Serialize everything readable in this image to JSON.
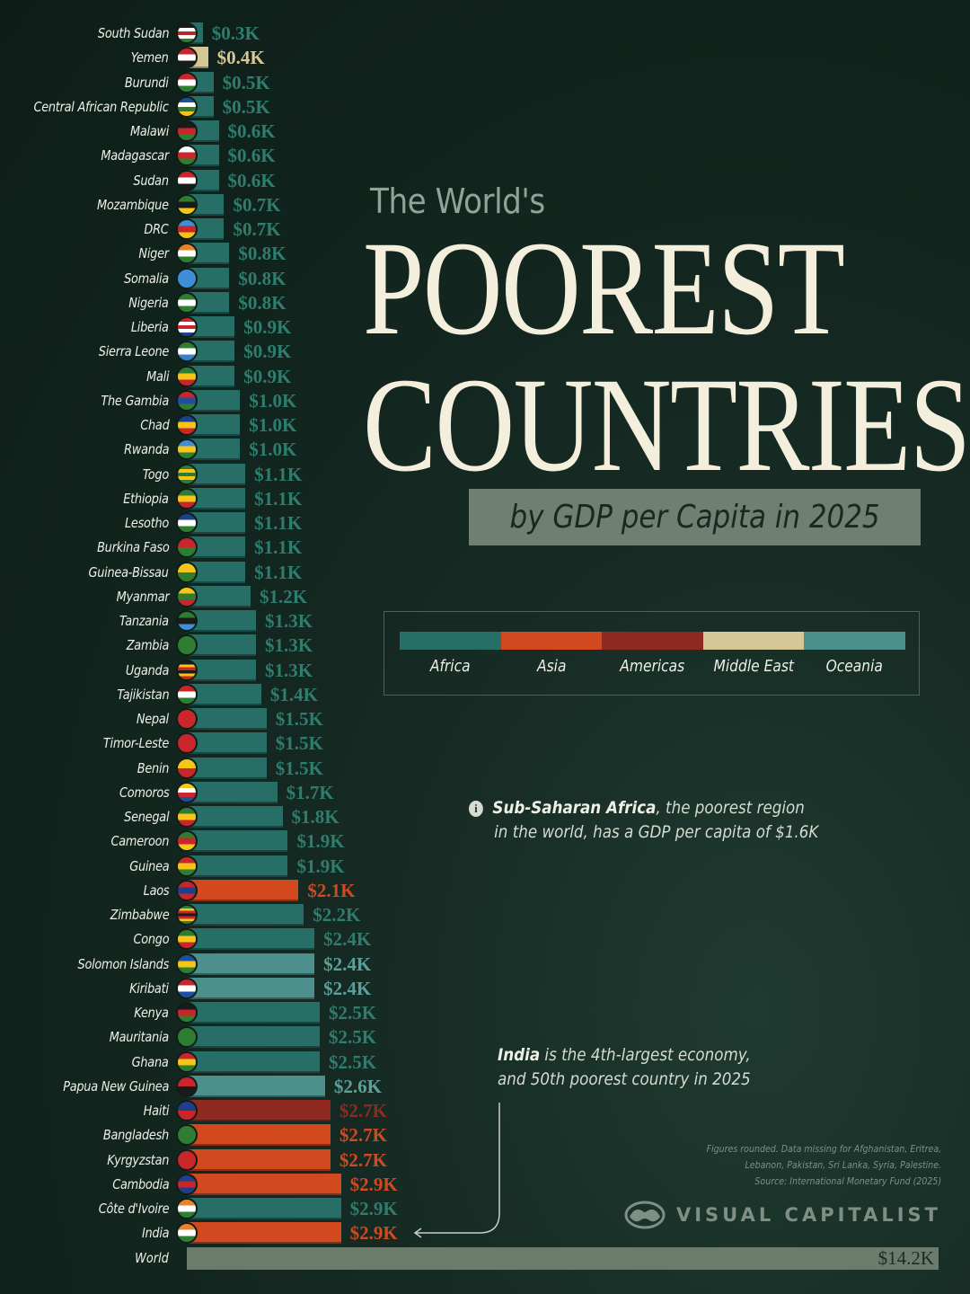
{
  "header": {
    "pretitle": "The World's",
    "title_line1": "POOREST",
    "title_line2": "COUNTRIES",
    "subtitle": "by GDP per Capita in 2025"
  },
  "legend": {
    "items": [
      {
        "label": "Africa",
        "color": "#276e66"
      },
      {
        "label": "Asia",
        "color": "#d2481f"
      },
      {
        "label": "Americas",
        "color": "#8f2a22"
      },
      {
        "label": "Middle East",
        "color": "#d6c896"
      },
      {
        "label": "Oceania",
        "color": "#4d8f8c"
      }
    ]
  },
  "annotations": {
    "ssa_bold": "Sub-Saharan Africa",
    "ssa_rest1": ", the poorest region",
    "ssa_line2": "in the world, has a GDP per capita of $1.6K",
    "info_icon": "i",
    "india_bold": "India",
    "india_rest1": " is the 4th-largest economy,",
    "india_line2": "and 50th poorest country in 2025"
  },
  "footer": {
    "note_line1": "Figures rounded. Data missing for Afghanistan, Eritrea,",
    "note_line2": "Lebanon, Pakistan, Sri Lanka, Syria, Palestine.",
    "source": "Source: International Monetary Fund (2025)",
    "brand": "VISUAL CAPITALIST"
  },
  "colors": {
    "Africa": "#276e66",
    "Asia": "#d2481f",
    "Americas": "#8f2a22",
    "Middle East": "#d6c896",
    "Oceania": "#4d8f8c",
    "World": "#6b7c6c",
    "background": "#10231c",
    "title": "#f4eedd"
  },
  "chart_data": {
    "type": "bar",
    "orientation": "horizontal",
    "title": "The World's POOREST COUNTRIES",
    "subtitle": "by GDP per Capita in 2025",
    "xlabel": "",
    "ylabel": "",
    "unit": "USD thousands (GDP per capita)",
    "grid": false,
    "legend_position": "right-middle",
    "categories": [
      "South Sudan",
      "Yemen",
      "Burundi",
      "Central African Republic",
      "Malawi",
      "Madagascar",
      "Sudan",
      "Mozambique",
      "DRC",
      "Niger",
      "Somalia",
      "Nigeria",
      "Liberia",
      "Sierra Leone",
      "Mali",
      "The Gambia",
      "Chad",
      "Rwanda",
      "Togo",
      "Ethiopia",
      "Lesotho",
      "Burkina Faso",
      "Guinea-Bissau",
      "Myanmar",
      "Tanzania",
      "Zambia",
      "Uganda",
      "Tajikistan",
      "Nepal",
      "Timor-Leste",
      "Benin",
      "Comoros",
      "Senegal",
      "Cameroon",
      "Guinea",
      "Laos",
      "Zimbabwe",
      "Congo",
      "Solomon Islands",
      "Kiribati",
      "Kenya",
      "Mauritania",
      "Ghana",
      "Papua New Guinea",
      "Haiti",
      "Bangladesh",
      "Kyrgyzstan",
      "Cambodia",
      "Côte d'Ivoire",
      "India",
      "World"
    ],
    "values": [
      0.3,
      0.4,
      0.5,
      0.5,
      0.6,
      0.6,
      0.6,
      0.7,
      0.7,
      0.8,
      0.8,
      0.8,
      0.9,
      0.9,
      0.9,
      1.0,
      1.0,
      1.0,
      1.1,
      1.1,
      1.1,
      1.1,
      1.1,
      1.2,
      1.3,
      1.3,
      1.3,
      1.4,
      1.5,
      1.5,
      1.5,
      1.7,
      1.8,
      1.9,
      1.9,
      2.1,
      2.2,
      2.4,
      2.4,
      2.4,
      2.5,
      2.5,
      2.5,
      2.6,
      2.7,
      2.7,
      2.7,
      2.9,
      2.9,
      2.9,
      14.2
    ],
    "regions": [
      "Africa",
      "Middle East",
      "Africa",
      "Africa",
      "Africa",
      "Africa",
      "Africa",
      "Africa",
      "Africa",
      "Africa",
      "Africa",
      "Africa",
      "Africa",
      "Africa",
      "Africa",
      "Africa",
      "Africa",
      "Africa",
      "Africa",
      "Africa",
      "Africa",
      "Africa",
      "Africa",
      "Africa",
      "Africa",
      "Africa",
      "Africa",
      "Africa",
      "Africa",
      "Africa",
      "Africa",
      "Africa",
      "Africa",
      "Africa",
      "Africa",
      "Asia",
      "Africa",
      "Africa",
      "Oceania",
      "Oceania",
      "Africa",
      "Africa",
      "Africa",
      "Oceania",
      "Americas",
      "Asia",
      "Asia",
      "Asia",
      "Africa",
      "Asia",
      "World"
    ],
    "labels": [
      "$0.3K",
      "$0.4K",
      "$0.5K",
      "$0.5K",
      "$0.6K",
      "$0.6K",
      "$0.6K",
      "$0.7K",
      "$0.7K",
      "$0.8K",
      "$0.8K",
      "$0.8K",
      "$0.9K",
      "$0.9K",
      "$0.9K",
      "$1.0K",
      "$1.0K",
      "$1.0K",
      "$1.1K",
      "$1.1K",
      "$1.1K",
      "$1.1K",
      "$1.1K",
      "$1.2K",
      "$1.3K",
      "$1.3K",
      "$1.3K",
      "$1.4K",
      "$1.5K",
      "$1.5K",
      "$1.5K",
      "$1.7K",
      "$1.8K",
      "$1.9K",
      "$1.9K",
      "$2.1K",
      "$2.2K",
      "$2.4K",
      "$2.4K",
      "$2.4K",
      "$2.5K",
      "$2.5K",
      "$2.5K",
      "$2.6K",
      "$2.7K",
      "$2.7K",
      "$2.7K",
      "$2.9K",
      "$2.9K",
      "$2.9K",
      "$14.2K"
    ],
    "legend": [
      "Africa",
      "Asia",
      "Americas",
      "Middle East",
      "Oceania"
    ],
    "annotations": [
      "Sub-Saharan Africa, the poorest region in the world, has a GDP per capita of $1.6K",
      "India is the 4th-largest economy, and 50th poorest country in 2025"
    ]
  },
  "flags": {
    "South Sudan": [
      "#1b1b1b",
      "#ffffff",
      "#b22a2a",
      "#ffffff",
      "#2e7d32"
    ],
    "Yemen": [
      "#c8262b",
      "#ffffff",
      "#1b1b1b"
    ],
    "Burundi": [
      "#c8262b",
      "#ffffff",
      "#2e7d32"
    ],
    "Central African Republic": [
      "#1e4fa0",
      "#ffffff",
      "#2e7d32",
      "#f5c518"
    ],
    "Malawi": [
      "#1b1b1b",
      "#c8262b",
      "#2e7d32"
    ],
    "Madagascar": [
      "#ffffff",
      "#c8262b",
      "#2e7d32"
    ],
    "Sudan": [
      "#c8262b",
      "#ffffff",
      "#1b1b1b"
    ],
    "Mozambique": [
      "#2e7d32",
      "#1b1b1b",
      "#f5c518"
    ],
    "DRC": [
      "#3a8fd8",
      "#c8262b",
      "#f5c518"
    ],
    "Niger": [
      "#e8832a",
      "#ffffff",
      "#2e7d32"
    ],
    "Somalia": [
      "#3f8fd8",
      "#3f8fd8",
      "#3f8fd8"
    ],
    "Nigeria": [
      "#2e7d32",
      "#ffffff",
      "#2e7d32"
    ],
    "Liberia": [
      "#c8262b",
      "#ffffff",
      "#c8262b",
      "#ffffff",
      "#1e3f8a"
    ],
    "Sierra Leone": [
      "#2e7d32",
      "#ffffff",
      "#3f7fc8"
    ],
    "Mali": [
      "#2e7d32",
      "#f5c518",
      "#c8262b"
    ],
    "The Gambia": [
      "#c8262b",
      "#1e4fa0",
      "#2e7d32"
    ],
    "Chad": [
      "#1e3f8a",
      "#f5c518",
      "#c8262b"
    ],
    "Rwanda": [
      "#3f8fd8",
      "#f5c518",
      "#2e7d32"
    ],
    "Togo": [
      "#2e7d32",
      "#f5c518",
      "#2e7d32",
      "#f5c518",
      "#2e7d32"
    ],
    "Ethiopia": [
      "#2e7d32",
      "#f5c518",
      "#c8262b"
    ],
    "Lesotho": [
      "#1e3f8a",
      "#ffffff",
      "#2e7d32"
    ],
    "Burkina Faso": [
      "#c8262b",
      "#2e7d32"
    ],
    "Guinea-Bissau": [
      "#f5c518",
      "#2e7d32"
    ],
    "Myanmar": [
      "#f5c518",
      "#2e7d32",
      "#c8262b"
    ],
    "Tanzania": [
      "#2e7d32",
      "#1b1b1b",
      "#3f8fd8"
    ],
    "Zambia": [
      "#2e7d32",
      "#2e7d32",
      "#2e7d32"
    ],
    "Uganda": [
      "#1b1b1b",
      "#f5c518",
      "#c8262b",
      "#1b1b1b",
      "#f5c518",
      "#c8262b"
    ],
    "Tajikistan": [
      "#c8262b",
      "#ffffff",
      "#2e7d32"
    ],
    "Nepal": [
      "#c8262b",
      "#c8262b",
      "#c8262b"
    ],
    "Timor-Leste": [
      "#c8262b",
      "#c8262b",
      "#c8262b"
    ],
    "Benin": [
      "#f5c518",
      "#c8262b"
    ],
    "Comoros": [
      "#f5c518",
      "#ffffff",
      "#c8262b",
      "#1e4fa0"
    ],
    "Senegal": [
      "#2e7d32",
      "#f5c518",
      "#c8262b"
    ],
    "Cameroon": [
      "#2e7d32",
      "#c8262b",
      "#f5c518"
    ],
    "Guinea": [
      "#c8262b",
      "#f5c518",
      "#2e7d32"
    ],
    "Laos": [
      "#c8262b",
      "#1e3f8a",
      "#c8262b"
    ],
    "Zimbabwe": [
      "#2e7d32",
      "#f5c518",
      "#c8262b",
      "#1b1b1b",
      "#c8262b",
      "#f5c518",
      "#2e7d32"
    ],
    "Congo": [
      "#2e7d32",
      "#f5c518",
      "#c8262b"
    ],
    "Solomon Islands": [
      "#1e4fa0",
      "#f5c518",
      "#2e7d32"
    ],
    "Kiribati": [
      "#c8262b",
      "#ffffff",
      "#1e4fa0"
    ],
    "Kenya": [
      "#1b1b1b",
      "#c8262b",
      "#2e7d32"
    ],
    "Mauritania": [
      "#2e7d32",
      "#2e7d32",
      "#2e7d32"
    ],
    "Ghana": [
      "#c8262b",
      "#f5c518",
      "#2e7d32"
    ],
    "Papua New Guinea": [
      "#c8262b",
      "#1b1b1b"
    ],
    "Haiti": [
      "#1e3f8a",
      "#c8262b"
    ],
    "Bangladesh": [
      "#2e7d32",
      "#2e7d32"
    ],
    "Kyrgyzstan": [
      "#c8262b",
      "#c8262b"
    ],
    "Cambodia": [
      "#1e3f8a",
      "#c8262b",
      "#1e3f8a"
    ],
    "Côte d'Ivoire": [
      "#e8832a",
      "#ffffff",
      "#2e7d32"
    ],
    "India": [
      "#e8832a",
      "#ffffff",
      "#2e7d32"
    ]
  }
}
